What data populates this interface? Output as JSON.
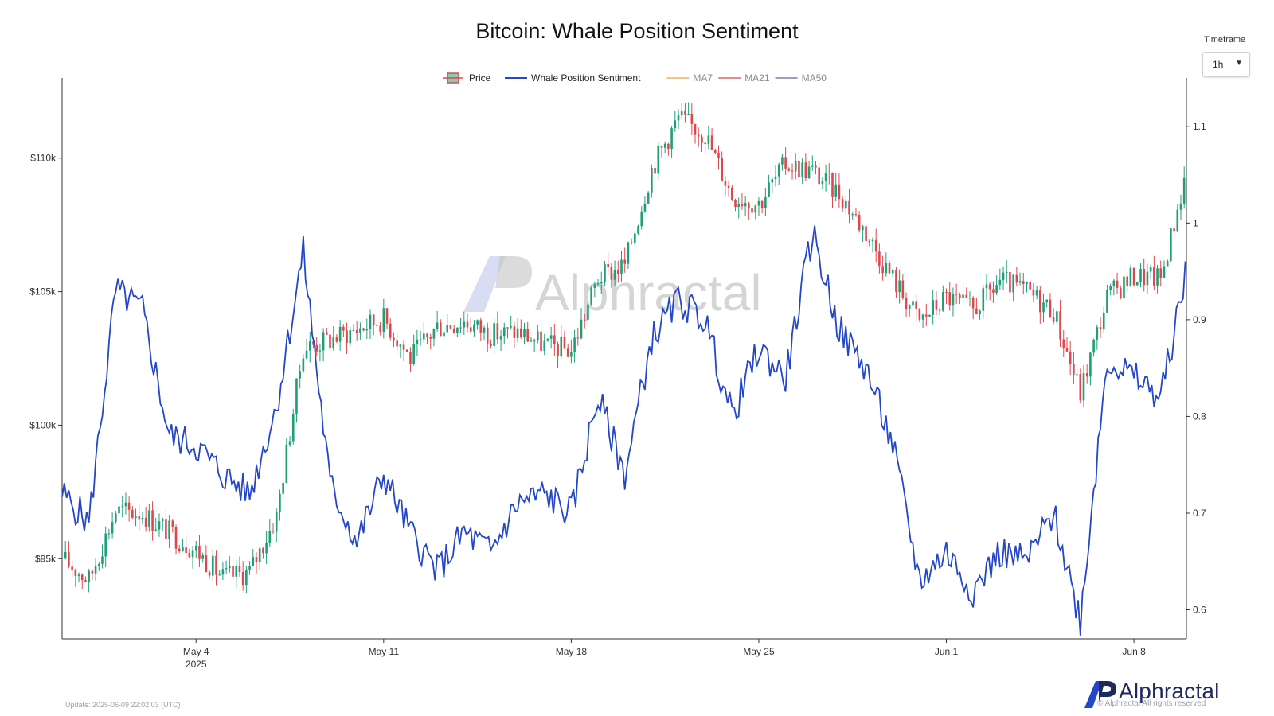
{
  "header": {
    "title": "Bitcoin: Whale Position Sentiment"
  },
  "timeframe": {
    "label": "Timeframe",
    "value": "1h",
    "caret": "▼"
  },
  "watermark": {
    "text": "Alphractal"
  },
  "footer": {
    "update": "Update: 2025-06-09 22:02:03 (UTC)",
    "rights": "© Alphractal All rights reserved",
    "brand": "Alphractal"
  },
  "colors": {
    "up": "#1f9e78",
    "down": "#e0474c",
    "sentiment": "#2446c8",
    "ma7": "#f2c38b",
    "ma21": "#e88b8b",
    "ma50": "#a59ac2"
  },
  "chart_data": {
    "type": "line",
    "title": "Bitcoin: Whale Position Sentiment",
    "legend": {
      "position": "top-center",
      "items": [
        {
          "name": "Price",
          "icon": "candle-icon",
          "color": "#1f9e78"
        },
        {
          "name": "Whale Position Sentiment",
          "color": "#2446c8"
        },
        {
          "name": "MA7",
          "color": "#f2c38b"
        },
        {
          "name": "MA21",
          "color": "#e88b8b"
        },
        {
          "name": "MA50",
          "color": "#a59ac2"
        }
      ]
    },
    "x_axis": {
      "start": "2025-04-29",
      "end": "2025-06-09T23:00",
      "ticks": [
        {
          "date": "2025-05-04",
          "label": "May 4",
          "sublabel": "2025"
        },
        {
          "date": "2025-05-11",
          "label": "May 11"
        },
        {
          "date": "2025-05-18",
          "label": "May 18"
        },
        {
          "date": "2025-05-25",
          "label": "May 25"
        },
        {
          "date": "2025-06-01",
          "label": "Jun 1"
        },
        {
          "date": "2025-06-08",
          "label": "Jun 8"
        }
      ]
    },
    "y_left": {
      "series": "Price",
      "range": [
        92000,
        113000
      ],
      "ticks": [
        {
          "value": 95000,
          "label": "$95k"
        },
        {
          "value": 100000,
          "label": "$100k"
        },
        {
          "value": 105000,
          "label": "$105k"
        },
        {
          "value": 110000,
          "label": "$110k"
        }
      ]
    },
    "y_right": {
      "series": "Whale Position Sentiment",
      "range": [
        0.57,
        1.15
      ],
      "ticks": [
        {
          "value": 0.6,
          "label": "0.6"
        },
        {
          "value": 0.7,
          "label": "0.7"
        },
        {
          "value": 0.8,
          "label": "0.8"
        },
        {
          "value": 0.9,
          "label": "0.9"
        },
        {
          "value": 1.0,
          "label": "1"
        },
        {
          "value": 1.1,
          "label": "1.1"
        }
      ]
    },
    "series": [
      {
        "name": "Price",
        "axis": "left",
        "style": "candlestick",
        "x": [
          "2025-04-29",
          "2025-04-30",
          "2025-05-01",
          "2025-05-02",
          "2025-05-03",
          "2025-05-04",
          "2025-05-05",
          "2025-05-06",
          "2025-05-07",
          "2025-05-08",
          "2025-05-09",
          "2025-05-10",
          "2025-05-11",
          "2025-05-12",
          "2025-05-13",
          "2025-05-14",
          "2025-05-15",
          "2025-05-16",
          "2025-05-17",
          "2025-05-18",
          "2025-05-19",
          "2025-05-20",
          "2025-05-21",
          "2025-05-22",
          "2025-05-23",
          "2025-05-24",
          "2025-05-25",
          "2025-05-26",
          "2025-05-27",
          "2025-05-28",
          "2025-05-29",
          "2025-05-30",
          "2025-05-31",
          "2025-06-01",
          "2025-06-02",
          "2025-06-03",
          "2025-06-04",
          "2025-06-05",
          "2025-06-06",
          "2025-06-07",
          "2025-06-08",
          "2025-06-09",
          "2025-06-09T23:00"
        ],
        "values": [
          95000,
          94200,
          96800,
          96700,
          96000,
          95300,
          94300,
          94500,
          96600,
          102900,
          103200,
          103600,
          104000,
          102500,
          103700,
          103900,
          103400,
          103500,
          103000,
          102800,
          105500,
          106000,
          109600,
          111500,
          110900,
          108600,
          108300,
          109800,
          109500,
          108700,
          107200,
          105500,
          103900,
          104800,
          104300,
          105400,
          105000,
          104300,
          101200,
          104800,
          105600,
          105500,
          109500
        ]
      },
      {
        "name": "Whale Position Sentiment",
        "axis": "right",
        "style": "line",
        "x": [
          "2025-04-29",
          "2025-04-30",
          "2025-05-01",
          "2025-05-02",
          "2025-05-03",
          "2025-05-04",
          "2025-05-05",
          "2025-05-06",
          "2025-05-07",
          "2025-05-08",
          "2025-05-09",
          "2025-05-10",
          "2025-05-11",
          "2025-05-12",
          "2025-05-13",
          "2025-05-14",
          "2025-05-15",
          "2025-05-16",
          "2025-05-17",
          "2025-05-18",
          "2025-05-19",
          "2025-05-20",
          "2025-05-21",
          "2025-05-22",
          "2025-05-23",
          "2025-05-24",
          "2025-05-25",
          "2025-05-26",
          "2025-05-27",
          "2025-05-28",
          "2025-05-29",
          "2025-05-30",
          "2025-05-31",
          "2025-06-01",
          "2025-06-02",
          "2025-06-03",
          "2025-06-04",
          "2025-06-05",
          "2025-06-06",
          "2025-06-07",
          "2025-06-08",
          "2025-06-09",
          "2025-06-09T23:00"
        ],
        "values": [
          0.72,
          0.69,
          0.93,
          0.91,
          0.78,
          0.77,
          0.74,
          0.72,
          0.81,
          0.97,
          0.73,
          0.67,
          0.74,
          0.68,
          0.64,
          0.68,
          0.66,
          0.71,
          0.72,
          0.7,
          0.82,
          0.74,
          0.88,
          0.92,
          0.9,
          0.8,
          0.87,
          0.84,
          0.99,
          0.89,
          0.85,
          0.77,
          0.63,
          0.66,
          0.62,
          0.66,
          0.65,
          0.7,
          0.59,
          0.86,
          0.84,
          0.82,
          0.95
        ]
      }
    ],
    "grid": false
  }
}
